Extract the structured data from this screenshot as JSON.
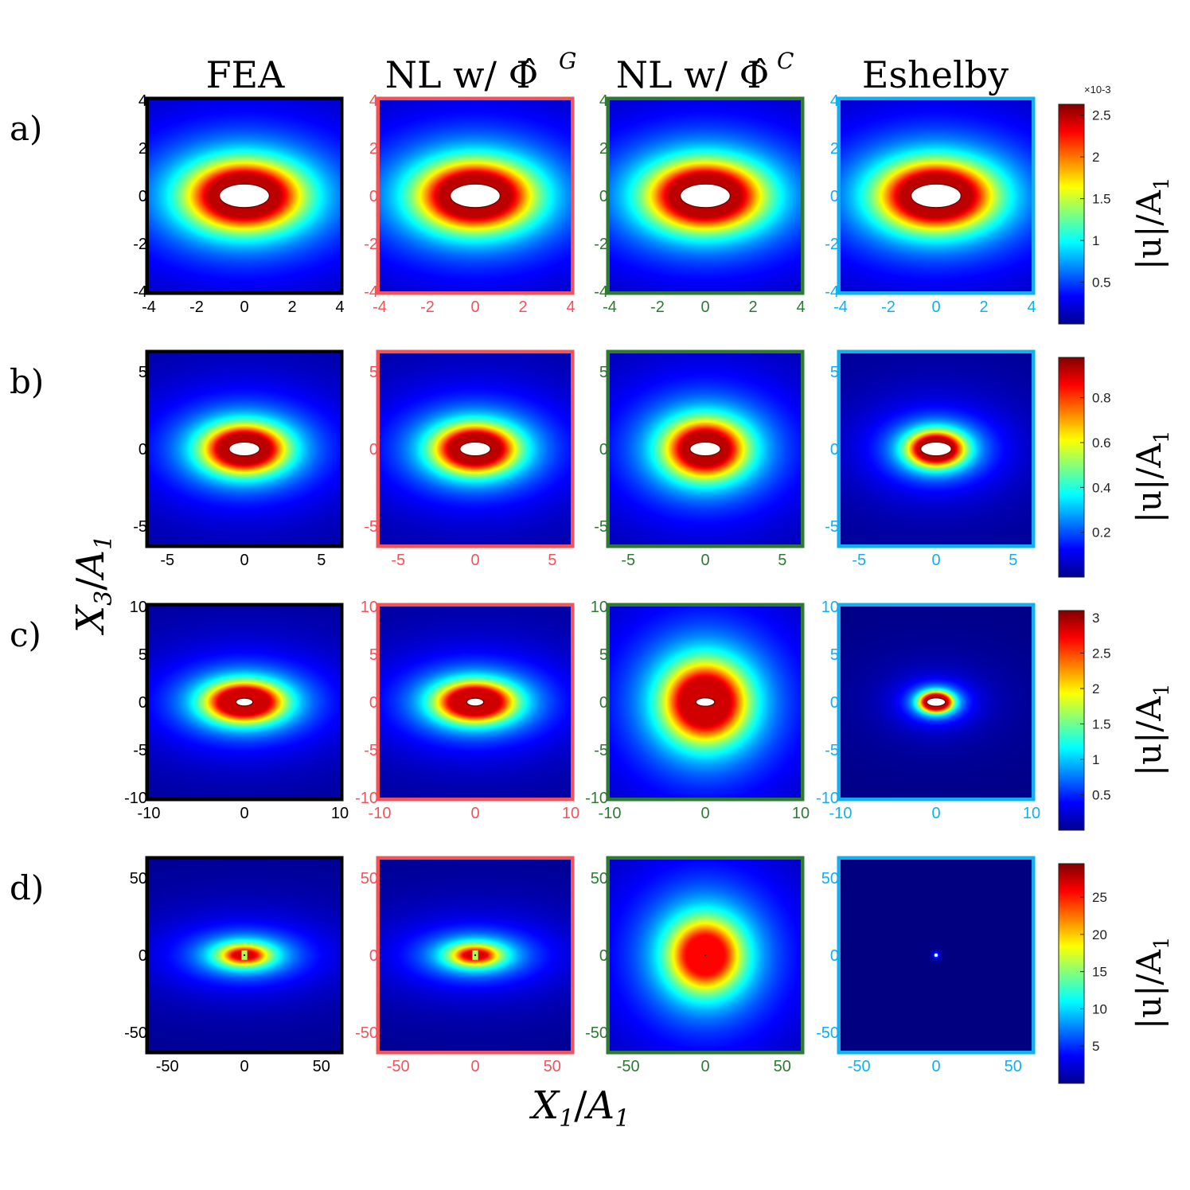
{
  "chart_data": {
    "type": "heatmap",
    "colormap": "jet",
    "col_titles": [
      "FEA",
      "NL w/ Φ̂",
      "NL w/ Φ̂",
      "Eshelby"
    ],
    "col_title_superscripts": [
      "",
      "G",
      "C",
      ""
    ],
    "col_colors": [
      "#000000",
      "#f0545a",
      "#2e7a32",
      "#10b0ee"
    ],
    "xlabel_main": "X",
    "xlabel_sub": "1",
    "xlabel_den": "A",
    "xlabel_den_sub": "1",
    "ylabel_main": "X",
    "ylabel_sub": "3",
    "ylabel_den": "A",
    "ylabel_den_sub": "1",
    "colorbar_label": "|u|/A",
    "colorbar_label_sub": "1",
    "rows": [
      {
        "label": "a)",
        "lim": [
          -4,
          4
        ],
        "xticks": [
          -4,
          -2,
          0,
          2,
          4
        ],
        "yticks": [
          -4,
          -2,
          0,
          2,
          4
        ],
        "colorbar": {
          "ticks": [
            "0.5",
            "1",
            "1.5",
            "2",
            "2.5"
          ],
          "tick_values": [
            0.5,
            1,
            1.5,
            2,
            2.5
          ],
          "range": [
            0.0,
            2.63
          ],
          "exponent": "×10-3"
        },
        "panels": [
          {
            "hole": [
              1.05,
              0.5
            ],
            "hot": [
              1.45,
              0.87
            ],
            "spread": 3.2,
            "peak": 0.97
          },
          {
            "hole": [
              1.05,
              0.5
            ],
            "hot": [
              1.45,
              0.87
            ],
            "spread": 3.2,
            "peak": 0.97
          },
          {
            "hole": [
              1.05,
              0.5
            ],
            "hot": [
              1.45,
              0.87
            ],
            "spread": 3.2,
            "peak": 0.97
          },
          {
            "hole": [
              1.05,
              0.5
            ],
            "hot": [
              1.45,
              0.87
            ],
            "spread": 3.2,
            "peak": 0.97
          }
        ]
      },
      {
        "label": "b)",
        "lim": [
          -6.2,
          6.2
        ],
        "xticks": [
          -5,
          0,
          5
        ],
        "yticks": [
          -5,
          0,
          5
        ],
        "colorbar": {
          "ticks": [
            "0.2",
            "0.4",
            "0.6",
            "0.8"
          ],
          "tick_values": [
            0.2,
            0.4,
            0.6,
            0.8
          ],
          "range": [
            0.0,
            0.98
          ],
          "exponent": ""
        },
        "panels": [
          {
            "hole": [
              1.0,
              0.45
            ],
            "hot": [
              1.6,
              0.95
            ],
            "spread": 3.6,
            "peak": 0.97
          },
          {
            "hole": [
              1.0,
              0.45
            ],
            "hot": [
              1.6,
              0.95
            ],
            "spread": 3.6,
            "peak": 0.97
          },
          {
            "hole": [
              1.0,
              0.45
            ],
            "hot": [
              1.45,
              1.05
            ],
            "spread": 3.8,
            "peak": 0.97
          },
          {
            "hole": [
              1.0,
              0.45
            ],
            "hot": [
              1.15,
              0.72
            ],
            "spread": 2.4,
            "peak": 0.97
          }
        ]
      },
      {
        "label": "c)",
        "lim": [
          -10,
          10
        ],
        "xticks": [
          -10,
          0,
          10
        ],
        "yticks": [
          -10,
          -5,
          0,
          5,
          10
        ],
        "colorbar": {
          "ticks": [
            "0.5",
            "1",
            "1.5",
            "2",
            "2.5",
            "3"
          ],
          "tick_values": [
            0.5,
            1,
            1.5,
            2,
            2.5,
            3
          ],
          "range": [
            0.0,
            3.1
          ],
          "exponent": ""
        },
        "panels": [
          {
            "hole": [
              0.9,
              0.42
            ],
            "hot": [
              2.5,
              1.3
            ],
            "spread": 5.5,
            "peak": 0.95
          },
          {
            "hole": [
              0.9,
              0.42
            ],
            "hot": [
              2.5,
              1.3
            ],
            "spread": 5.5,
            "peak": 0.95
          },
          {
            "hole": [
              1.0,
              0.45
            ],
            "hot": [
              2.5,
              2.4
            ],
            "spread": 6.2,
            "peak": 0.95
          },
          {
            "hole": [
              1.0,
              0.45
            ],
            "hot": [
              1.2,
              0.75
            ],
            "spread": 2.0,
            "peak": 0.95
          }
        ]
      },
      {
        "label": "d)",
        "lim": [
          -62,
          62
        ],
        "xticks": [
          -50,
          0,
          50
        ],
        "yticks": [
          -50,
          0,
          50
        ],
        "colorbar": {
          "ticks": [
            "5",
            "10",
            "15",
            "20",
            "25"
          ],
          "tick_values": [
            5,
            10,
            15,
            20,
            25
          ],
          "range": [
            0.0,
            29.5
          ],
          "exponent": ""
        },
        "panels": [
          {
            "hole": [
              0.0,
              0.0
            ],
            "hot": [
              14,
              6
            ],
            "spread": 32,
            "peak": 0.93,
            "dipole": true
          },
          {
            "hole": [
              0.0,
              0.0
            ],
            "hot": [
              14,
              6
            ],
            "spread": 32,
            "peak": 0.93,
            "dipole": true
          },
          {
            "hole": [
              0.0,
              0.0
            ],
            "hot": [
              12,
              12
            ],
            "spread": 38,
            "peak": 0.9
          },
          {
            "hole": [
              0.0,
              0.0
            ],
            "hot": [
              1.2,
              1.2
            ],
            "spread": 2.5,
            "peak": 0.6,
            "point": true
          }
        ]
      }
    ]
  }
}
